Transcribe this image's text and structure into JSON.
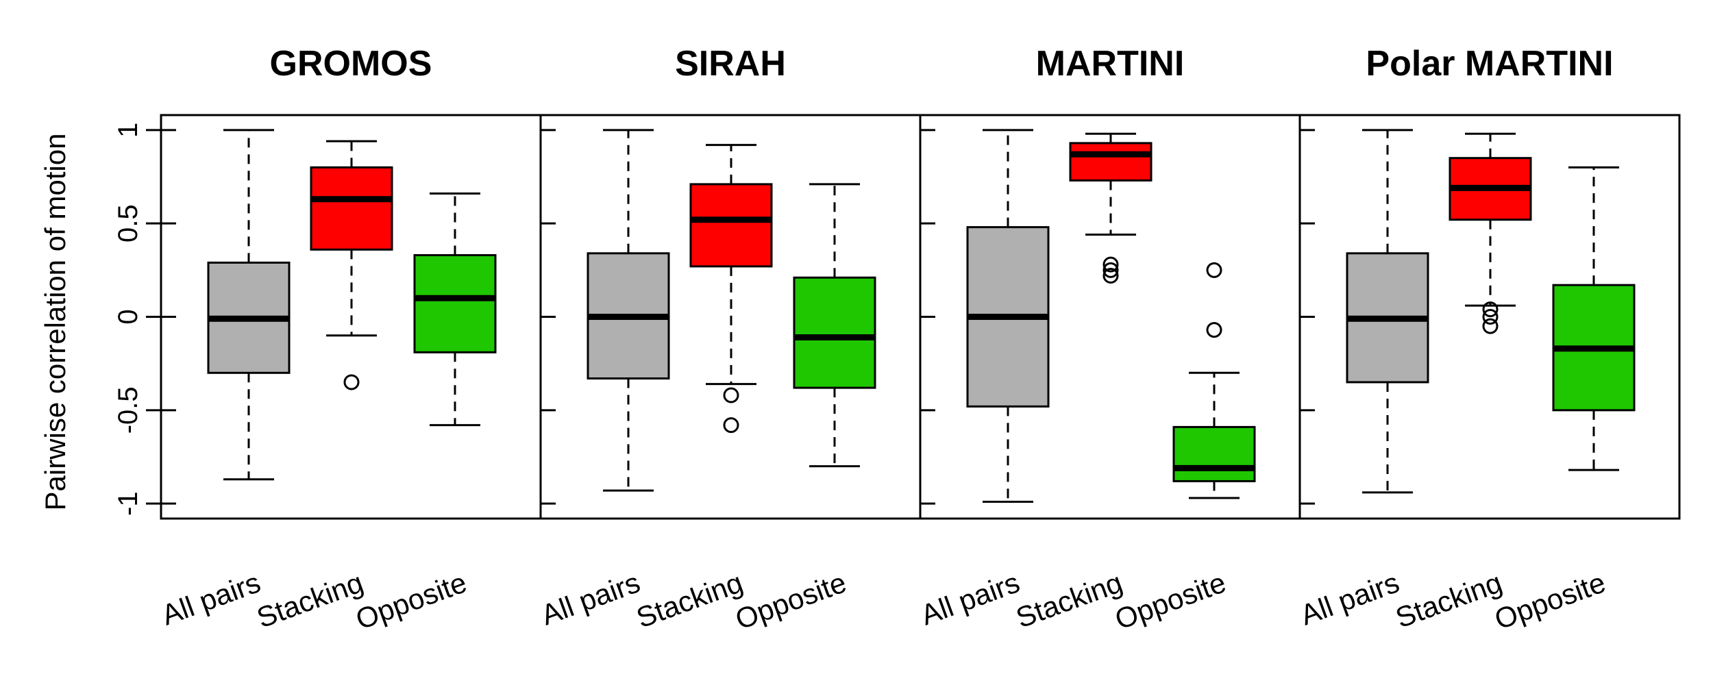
{
  "chart_data": {
    "type": "boxplot",
    "ylabel": "Pairwise correlation of motion",
    "ylim": [
      -1.08,
      1.08
    ],
    "yticks": [
      1,
      0.5,
      0,
      -0.5,
      -1
    ],
    "ytick_labels": [
      "1",
      "0.5",
      "0",
      "-0.5",
      "-1"
    ],
    "categories": [
      "All pairs",
      "Stacking",
      "Opposite"
    ],
    "category_colors": [
      "#b0b0b0",
      "#ff0000",
      "#1ec700"
    ],
    "panels": [
      {
        "title": "GROMOS",
        "boxes": [
          {
            "category": "All pairs",
            "whisker_low": -0.87,
            "q1": -0.3,
            "median": -0.01,
            "q3": 0.29,
            "whisker_high": 1.0,
            "outliers": []
          },
          {
            "category": "Stacking",
            "whisker_low": -0.1,
            "q1": 0.36,
            "median": 0.63,
            "q3": 0.8,
            "whisker_high": 0.94,
            "outliers": [
              -0.35
            ]
          },
          {
            "category": "Opposite",
            "whisker_low": -0.58,
            "q1": -0.19,
            "median": 0.1,
            "q3": 0.33,
            "whisker_high": 0.66,
            "outliers": []
          }
        ]
      },
      {
        "title": "SIRAH",
        "boxes": [
          {
            "category": "All pairs",
            "whisker_low": -0.93,
            "q1": -0.33,
            "median": 0.0,
            "q3": 0.34,
            "whisker_high": 1.0,
            "outliers": []
          },
          {
            "category": "Stacking",
            "whisker_low": -0.36,
            "q1": 0.27,
            "median": 0.52,
            "q3": 0.71,
            "whisker_high": 0.92,
            "outliers": [
              -0.42,
              -0.58
            ]
          },
          {
            "category": "Opposite",
            "whisker_low": -0.8,
            "q1": -0.38,
            "median": -0.11,
            "q3": 0.21,
            "whisker_high": 0.71,
            "outliers": []
          }
        ]
      },
      {
        "title": "MARTINI",
        "boxes": [
          {
            "category": "All pairs",
            "whisker_low": -0.99,
            "q1": -0.48,
            "median": 0.0,
            "q3": 0.48,
            "whisker_high": 1.0,
            "outliers": []
          },
          {
            "category": "Stacking",
            "whisker_low": 0.44,
            "q1": 0.73,
            "median": 0.87,
            "q3": 0.93,
            "whisker_high": 0.98,
            "outliers": [
              0.28,
              0.25,
              0.22
            ]
          },
          {
            "category": "Opposite",
            "whisker_low": -0.97,
            "q1": -0.88,
            "median": -0.81,
            "q3": -0.59,
            "whisker_high": -0.3,
            "outliers": [
              0.25,
              -0.07
            ]
          }
        ]
      },
      {
        "title": "Polar MARTINI",
        "boxes": [
          {
            "category": "All pairs",
            "whisker_low": -0.94,
            "q1": -0.35,
            "median": -0.01,
            "q3": 0.34,
            "whisker_high": 1.0,
            "outliers": []
          },
          {
            "category": "Stacking",
            "whisker_low": 0.06,
            "q1": 0.52,
            "median": 0.69,
            "q3": 0.85,
            "whisker_high": 0.98,
            "outliers": [
              0.04,
              0.0,
              -0.05
            ]
          },
          {
            "category": "Opposite",
            "whisker_low": -0.82,
            "q1": -0.5,
            "median": -0.17,
            "q3": 0.17,
            "whisker_high": 0.8,
            "outliers": []
          }
        ]
      }
    ]
  }
}
